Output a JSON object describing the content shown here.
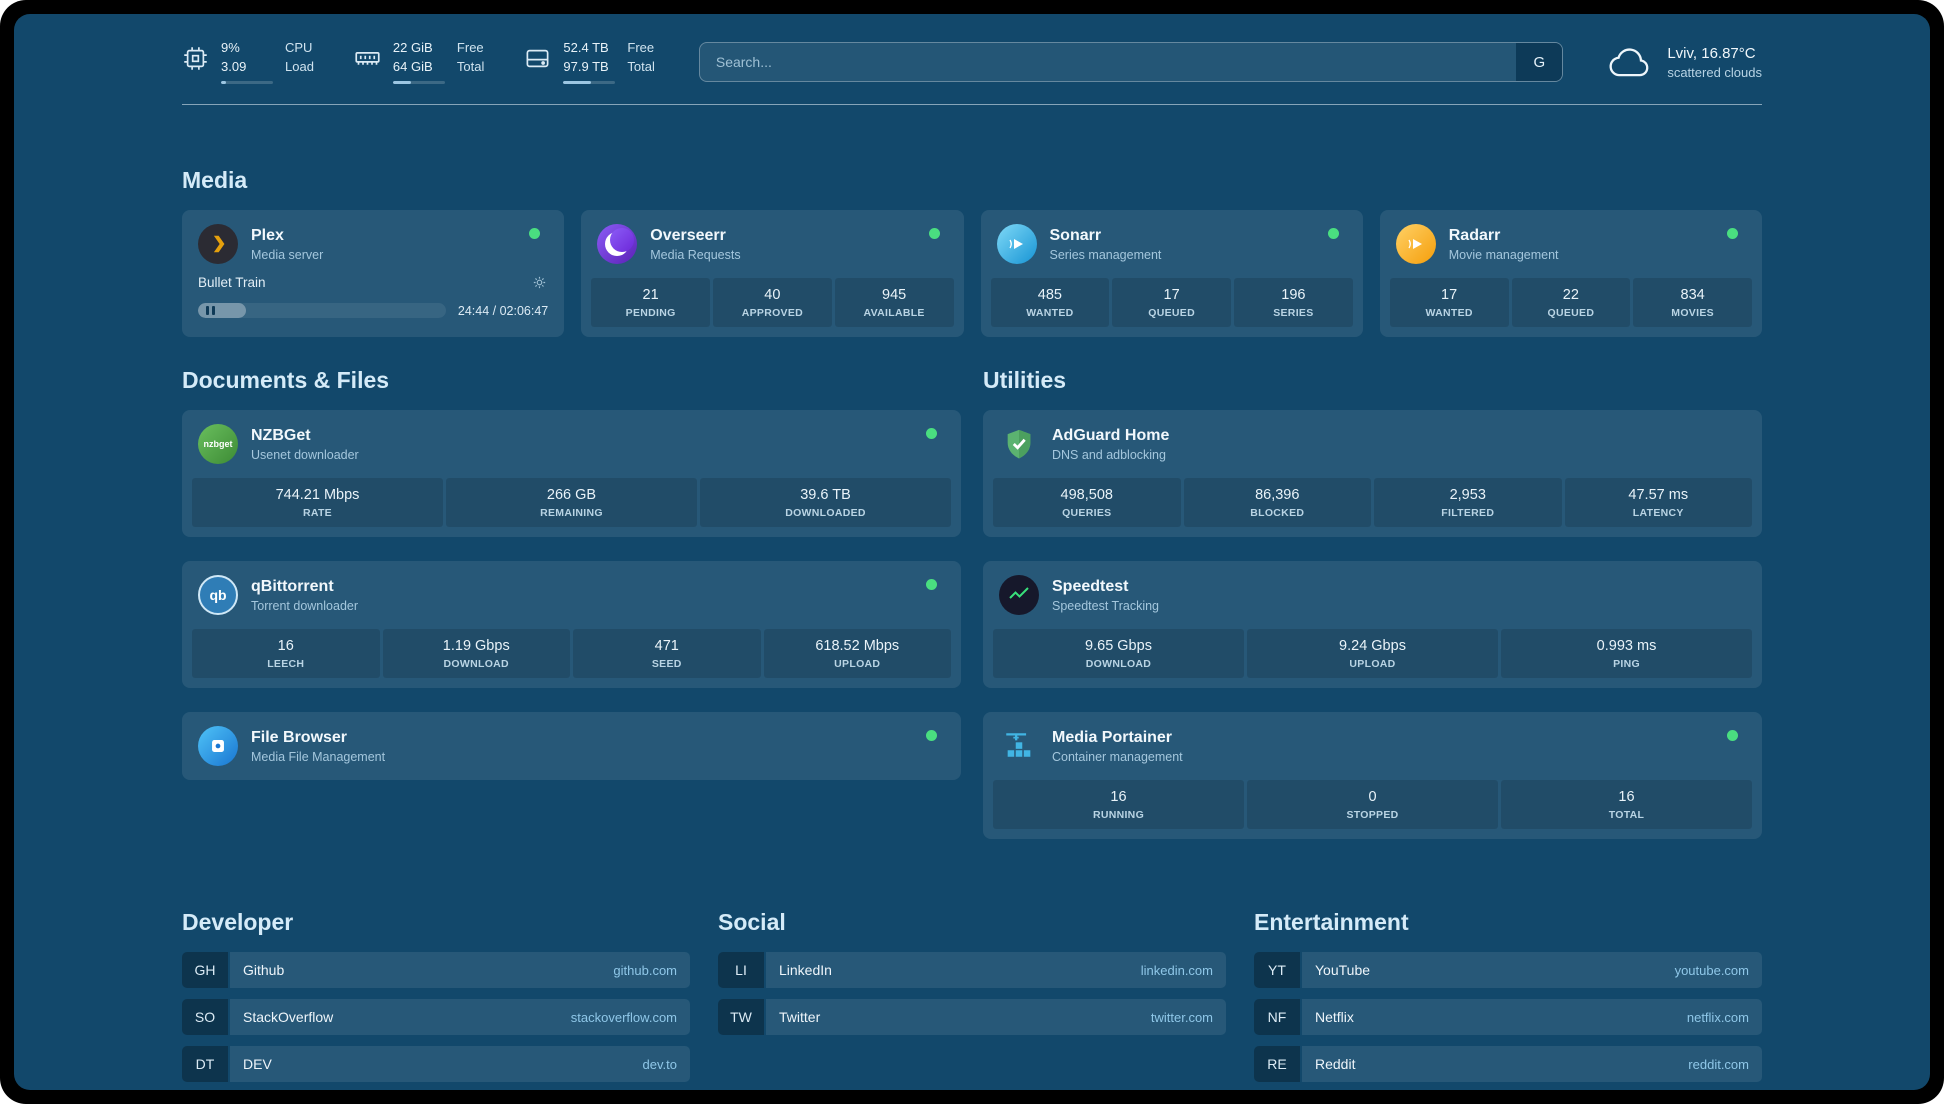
{
  "header": {
    "resources": [
      {
        "name": "cpu",
        "values": [
          "9%",
          "3.09"
        ],
        "labels": [
          "CPU",
          "Load"
        ],
        "progress_pct": 9
      },
      {
        "name": "memory",
        "values": [
          "22 GiB",
          "64 GiB"
        ],
        "labels": [
          "Free",
          "Total"
        ],
        "progress_pct": 34
      },
      {
        "name": "disk",
        "values": [
          "52.4 TB",
          "97.9 TB"
        ],
        "labels": [
          "Free",
          "Total"
        ],
        "progress_pct": 53
      }
    ],
    "search": {
      "placeholder": "Search...",
      "provider_label": "G"
    },
    "weather": {
      "location": "Lviv, 16.87°C",
      "condition": "scattered clouds"
    }
  },
  "sections": {
    "media": {
      "title": "Media"
    },
    "documents": {
      "title": "Documents & Files"
    },
    "utilities": {
      "title": "Utilities"
    },
    "developer": {
      "title": "Developer"
    },
    "social": {
      "title": "Social"
    },
    "entertainment": {
      "title": "Entertainment"
    }
  },
  "services": {
    "plex": {
      "name": "Plex",
      "desc": "Media server",
      "status": "online",
      "now_playing": "Bullet Train",
      "time": "24:44 / 02:06:47",
      "progress_pct": 19.5
    },
    "overseerr": {
      "name": "Overseerr",
      "desc": "Media Requests",
      "status": "online",
      "stats": [
        {
          "value": "21",
          "label": "PENDING"
        },
        {
          "value": "40",
          "label": "APPROVED"
        },
        {
          "value": "945",
          "label": "AVAILABLE"
        }
      ]
    },
    "sonarr": {
      "name": "Sonarr",
      "desc": "Series management",
      "status": "online",
      "stats": [
        {
          "value": "485",
          "label": "WANTED"
        },
        {
          "value": "17",
          "label": "QUEUED"
        },
        {
          "value": "196",
          "label": "SERIES"
        }
      ]
    },
    "radarr": {
      "name": "Radarr",
      "desc": "Movie management",
      "status": "online",
      "stats": [
        {
          "value": "17",
          "label": "WANTED"
        },
        {
          "value": "22",
          "label": "QUEUED"
        },
        {
          "value": "834",
          "label": "MOVIES"
        }
      ]
    },
    "nzbget": {
      "name": "NZBGet",
      "desc": "Usenet downloader",
      "status": "online",
      "icon_text": "nzbget",
      "stats": [
        {
          "value": "744.21 Mbps",
          "label": "RATE"
        },
        {
          "value": "266 GB",
          "label": "REMAINING"
        },
        {
          "value": "39.6 TB",
          "label": "DOWNLOADED"
        }
      ]
    },
    "qbittorrent": {
      "name": "qBittorrent",
      "desc": "Torrent downloader",
      "status": "online",
      "icon_text": "qb",
      "stats": [
        {
          "value": "16",
          "label": "LEECH"
        },
        {
          "value": "1.19 Gbps",
          "label": "DOWNLOAD"
        },
        {
          "value": "471",
          "label": "SEED"
        },
        {
          "value": "618.52 Mbps",
          "label": "UPLOAD"
        }
      ]
    },
    "filebrowser": {
      "name": "File Browser",
      "desc": "Media File Management",
      "status": "online"
    },
    "adguard": {
      "name": "AdGuard Home",
      "desc": "DNS and adblocking",
      "stats": [
        {
          "value": "498,508",
          "label": "QUERIES"
        },
        {
          "value": "86,396",
          "label": "BLOCKED"
        },
        {
          "value": "2,953",
          "label": "FILTERED"
        },
        {
          "value": "47.57 ms",
          "label": "LATENCY"
        }
      ]
    },
    "speedtest": {
      "name": "Speedtest",
      "desc": "Speedtest Tracking",
      "stats": [
        {
          "value": "9.65 Gbps",
          "label": "DOWNLOAD"
        },
        {
          "value": "9.24 Gbps",
          "label": "UPLOAD"
        },
        {
          "value": "0.993 ms",
          "label": "PING"
        }
      ]
    },
    "portainer": {
      "name": "Media Portainer",
      "desc": "Container management",
      "status": "online",
      "stats": [
        {
          "value": "16",
          "label": "RUNNING"
        },
        {
          "value": "0",
          "label": "STOPPED"
        },
        {
          "value": "16",
          "label": "TOTAL"
        }
      ]
    }
  },
  "bookmarks": {
    "developer": [
      {
        "abbr": "GH",
        "name": "Github",
        "url": "github.com"
      },
      {
        "abbr": "SO",
        "name": "StackOverflow",
        "url": "stackoverflow.com"
      },
      {
        "abbr": "DT",
        "name": "DEV",
        "url": "dev.to"
      }
    ],
    "social": [
      {
        "abbr": "LI",
        "name": "LinkedIn",
        "url": "linkedin.com"
      },
      {
        "abbr": "TW",
        "name": "Twitter",
        "url": "twitter.com"
      }
    ],
    "entertainment": [
      {
        "abbr": "YT",
        "name": "YouTube",
        "url": "youtube.com"
      },
      {
        "abbr": "NF",
        "name": "Netflix",
        "url": "netflix.com"
      },
      {
        "abbr": "RE",
        "name": "Reddit",
        "url": "reddit.com"
      }
    ]
  },
  "colors": {
    "accent": "#8fc7e8",
    "status_online": "#4ade80",
    "background": "#12486b"
  }
}
